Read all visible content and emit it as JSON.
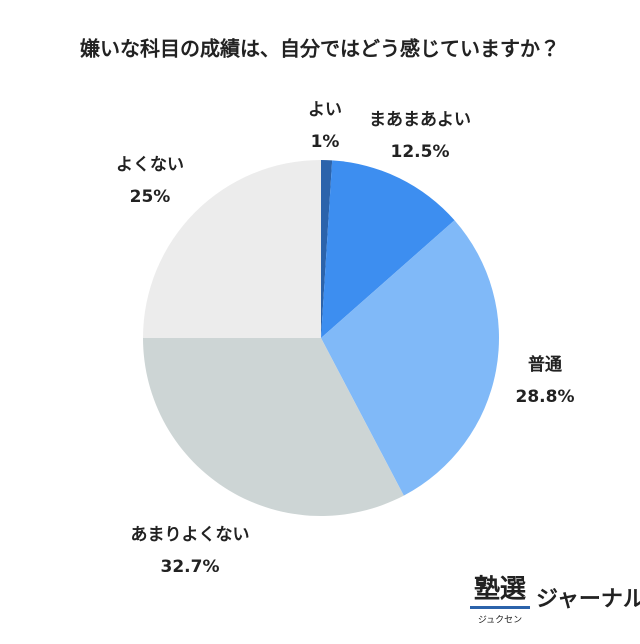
{
  "chart_data": {
    "type": "pie",
    "title": "嫌いな科目の成績は、自分ではどう感じていますか？",
    "categories": [
      "よい",
      "まあまあよい",
      "普通",
      "あまりよくない",
      "よくない"
    ],
    "values": [
      1,
      12.5,
      28.8,
      32.7,
      25
    ],
    "value_labels": [
      "1%",
      "12.5%",
      "28.8%",
      "32.7%",
      "25%"
    ],
    "colors": [
      "#2b63ab",
      "#3d8ef0",
      "#80b9f8",
      "#cdd5d5",
      "#ececec"
    ]
  },
  "logo": {
    "main": "塾選",
    "sub": "ジュクセン",
    "text": "ジャーナル"
  }
}
